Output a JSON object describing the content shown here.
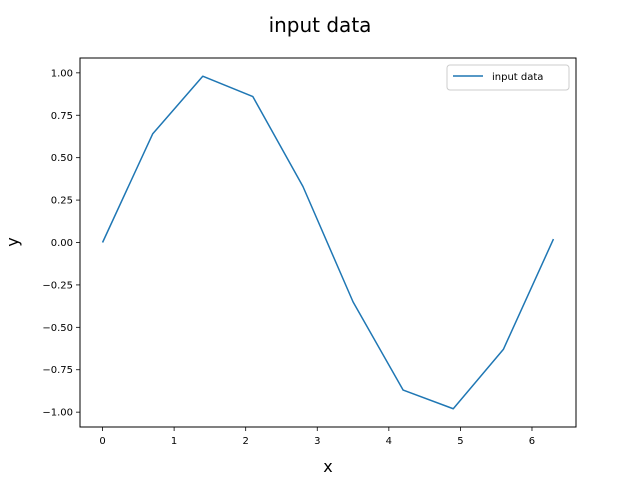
{
  "chart_data": {
    "type": "line",
    "title": "input data",
    "xlabel": "x",
    "ylabel": "y",
    "xlim": [
      -0.315,
      6.615
    ],
    "ylim": [
      -1.0875,
      1.0875
    ],
    "xticks": [
      0,
      1,
      2,
      3,
      4,
      5,
      6
    ],
    "xtick_labels": [
      "0",
      "1",
      "2",
      "3",
      "4",
      "5",
      "6"
    ],
    "yticks": [
      -1.0,
      -0.75,
      -0.5,
      -0.25,
      0.0,
      0.25,
      0.5,
      0.75,
      1.0
    ],
    "ytick_labels": [
      "−1.00",
      "−0.75",
      "−0.50",
      "−0.25",
      "0.00",
      "0.25",
      "0.50",
      "0.75",
      "1.00"
    ],
    "grid": false,
    "legend_position": "top-right",
    "series": [
      {
        "name": "input data",
        "color": "#1f77b4",
        "x": [
          0.0,
          0.7,
          1.4,
          2.1,
          2.8,
          3.5,
          4.2,
          4.9,
          5.6,
          6.3
        ],
        "y": [
          0.0,
          0.64,
          0.98,
          0.86,
          0.33,
          -0.35,
          -0.87,
          -0.98,
          -0.63,
          0.02
        ]
      }
    ]
  }
}
